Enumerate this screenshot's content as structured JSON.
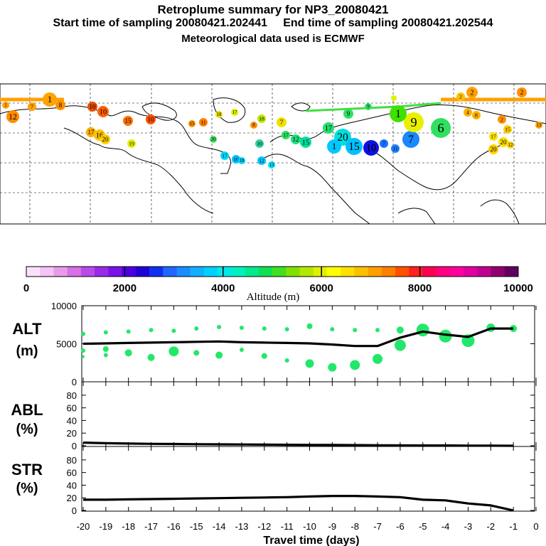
{
  "header": {
    "title": "Retroplume summary for NP3_20080421",
    "sampling_line": "Start time of sampling 20080421.202441     End time of sampling 20080421.202544",
    "met_line": "Meteorological data used is ECMWF"
  },
  "map": {
    "plume_labels": [
      "1",
      "2",
      "3",
      "4",
      "5",
      "6",
      "7",
      "8",
      "9",
      "10",
      "11",
      "12",
      "13",
      "14",
      "15",
      "16",
      "17",
      "18",
      "19",
      "20"
    ]
  },
  "colorbar": {
    "label": "Altitude (m)",
    "ticks": [
      "0",
      "2000",
      "4000",
      "6000",
      "8000",
      "10000"
    ],
    "colors": [
      "#fbe0fb",
      "#f4c4f4",
      "#e99be9",
      "#d870e6",
      "#b84ce6",
      "#9a2ae6",
      "#7a12e6",
      "#5000e0",
      "#2000d8",
      "#1030f0",
      "#1f66ff",
      "#1a8cff",
      "#10b0ff",
      "#00d0ff",
      "#00e8e8",
      "#00f0c0",
      "#00e890",
      "#10e050",
      "#40e020",
      "#80e000",
      "#b0e800",
      "#e0f000",
      "#ffff00",
      "#ffe000",
      "#ffc000",
      "#ffa000",
      "#ff8000",
      "#ff5000",
      "#ff2020",
      "#ff0050",
      "#ff0080",
      "#ff00a0",
      "#e000a0",
      "#c00090",
      "#900070",
      "#600060"
    ]
  },
  "chart_data": [
    {
      "type": "line+scatter",
      "panel": "ALT",
      "ylabel_lines": [
        "ALT",
        "(m)"
      ],
      "ylim": [
        0,
        10000
      ],
      "yticks": [
        "0",
        "5000",
        "10000"
      ],
      "x": [
        -20,
        -19,
        -18,
        -17,
        -16,
        -15,
        -14,
        -13,
        -12,
        -11,
        -10,
        -9,
        -8,
        -7,
        -6,
        -5,
        -4,
        -3,
        -2,
        -1
      ],
      "values": [
        5000,
        5050,
        5100,
        5150,
        5200,
        5250,
        5300,
        5200,
        5150,
        5100,
        5050,
        4900,
        4700,
        4700,
        5800,
        6600,
        6200,
        5900,
        7000,
        7000
      ],
      "clusters": [
        {
          "x": -20,
          "y": 6300,
          "s": 3
        },
        {
          "x": -20,
          "y": 4100,
          "s": 3
        },
        {
          "x": -20,
          "y": 3300,
          "s": 2
        },
        {
          "x": -19,
          "y": 6500,
          "s": 3
        },
        {
          "x": -19,
          "y": 4300,
          "s": 4
        },
        {
          "x": -19,
          "y": 3500,
          "s": 3
        },
        {
          "x": -18,
          "y": 6600,
          "s": 3
        },
        {
          "x": -18,
          "y": 3800,
          "s": 5
        },
        {
          "x": -17,
          "y": 6800,
          "s": 3
        },
        {
          "x": -17,
          "y": 3200,
          "s": 5
        },
        {
          "x": -16,
          "y": 6700,
          "s": 3
        },
        {
          "x": -16,
          "y": 4000,
          "s": 7
        },
        {
          "x": -15,
          "y": 7000,
          "s": 3
        },
        {
          "x": -15,
          "y": 3800,
          "s": 4
        },
        {
          "x": -14,
          "y": 7200,
          "s": 3
        },
        {
          "x": -14,
          "y": 3500,
          "s": 5
        },
        {
          "x": -13,
          "y": 7100,
          "s": 3
        },
        {
          "x": -13,
          "y": 4200,
          "s": 3
        },
        {
          "x": -12,
          "y": 7000,
          "s": 3
        },
        {
          "x": -12,
          "y": 3400,
          "s": 4
        },
        {
          "x": -11,
          "y": 6900,
          "s": 3
        },
        {
          "x": -11,
          "y": 2800,
          "s": 3
        },
        {
          "x": -10,
          "y": 7300,
          "s": 4
        },
        {
          "x": -10,
          "y": 2400,
          "s": 6
        },
        {
          "x": -9,
          "y": 6900,
          "s": 3
        },
        {
          "x": -9,
          "y": 1900,
          "s": 6
        },
        {
          "x": -8,
          "y": 6800,
          "s": 3
        },
        {
          "x": -8,
          "y": 2200,
          "s": 7
        },
        {
          "x": -7,
          "y": 6800,
          "s": 3
        },
        {
          "x": -7,
          "y": 3000,
          "s": 7
        },
        {
          "x": -6,
          "y": 6800,
          "s": 5
        },
        {
          "x": -6,
          "y": 4800,
          "s": 8
        },
        {
          "x": -5,
          "y": 6800,
          "s": 9
        },
        {
          "x": -4,
          "y": 6000,
          "s": 9
        },
        {
          "x": -3,
          "y": 5400,
          "s": 9
        },
        {
          "x": -2,
          "y": 7100,
          "s": 6
        },
        {
          "x": -1,
          "y": 7000,
          "s": 5
        }
      ]
    },
    {
      "type": "line",
      "panel": "ABL",
      "ylabel_lines": [
        "ABL",
        "(%)"
      ],
      "ylim": [
        0,
        90
      ],
      "yticks": [
        "0",
        "20",
        "40",
        "60",
        "80"
      ],
      "x": [
        -20,
        -19,
        -18,
        -17,
        -16,
        -15,
        -14,
        -13,
        -12,
        -11,
        -10,
        -9,
        -8,
        -7,
        -6,
        -5,
        -4,
        -3,
        -2,
        -1
      ],
      "values": [
        5,
        4,
        3.5,
        3,
        2.8,
        2.5,
        2.3,
        2,
        1.8,
        1.6,
        1.4,
        1.2,
        1,
        0.8,
        0.6,
        0.5,
        0.4,
        0.2,
        0.1,
        0
      ]
    },
    {
      "type": "line",
      "panel": "STR",
      "ylabel_lines": [
        "STR",
        "(%)"
      ],
      "ylim": [
        0,
        90
      ],
      "yticks": [
        "0",
        "20",
        "40",
        "60",
        "80"
      ],
      "x": [
        -20,
        -19,
        -18,
        -17,
        -16,
        -15,
        -14,
        -13,
        -12,
        -11,
        -10,
        -9,
        -8,
        -7,
        -6,
        -5,
        -4,
        -3,
        -2,
        -1
      ],
      "values": [
        17,
        17,
        17.5,
        18,
        18.5,
        19,
        19.5,
        20,
        20.5,
        21,
        22,
        23,
        23,
        22,
        21,
        17,
        16,
        11,
        8,
        0
      ],
      "xlabel": "Travel time (days)",
      "xticks": [
        "-20",
        "-19",
        "-18",
        "-17",
        "-16",
        "-15",
        "-14",
        "-13",
        "-12",
        "-11",
        "-10",
        "-9",
        "-8",
        "-7",
        "-6",
        "-5",
        "-4",
        "-3",
        "-2",
        "-1",
        "0"
      ]
    }
  ]
}
